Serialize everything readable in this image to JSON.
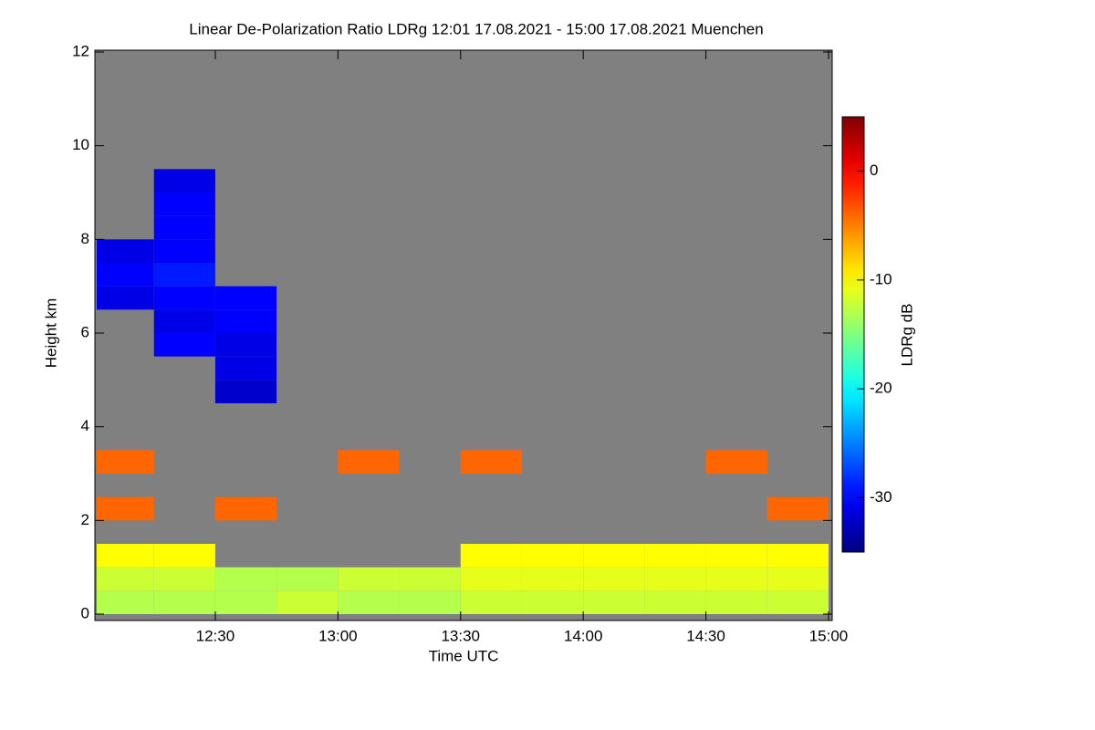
{
  "chart_data": {
    "type": "heatmap",
    "title": "Linear De-Polarization Ratio LDRg   12:01 17.08.2021 - 15:00 17.08.2021 Muenchen",
    "xlabel": "Time UTC",
    "ylabel": "Height km",
    "colorbar_label": "LDRg dB",
    "missing_color": "#808080",
    "colormap": "jet",
    "xlim": [
      12.0167,
      15.0
    ],
    "xticks": [
      {
        "value": 12.5,
        "label": "12:30"
      },
      {
        "value": 13.0,
        "label": "13:00"
      },
      {
        "value": 13.5,
        "label": "13:30"
      },
      {
        "value": 14.0,
        "label": "14:00"
      },
      {
        "value": 14.5,
        "label": "14:30"
      },
      {
        "value": 15.0,
        "label": "15:00"
      }
    ],
    "ylim": [
      0,
      12
    ],
    "yticks": [
      0,
      2,
      4,
      6,
      8,
      10,
      12
    ],
    "zlim": [
      -35,
      5
    ],
    "zticks": [
      0,
      -10,
      -20,
      -30
    ],
    "x_bins": [
      12.0167,
      12.25,
      12.5,
      12.75,
      13.0,
      13.25,
      13.5,
      13.75,
      14.0,
      14.25,
      14.5,
      14.75,
      15.0
    ],
    "y_bins": [
      0,
      0.5,
      1,
      1.5,
      2,
      2.5,
      3,
      3.5,
      4,
      4.5,
      5,
      5.5,
      6,
      6.5,
      7,
      7.5,
      8,
      8.5,
      9,
      9.5,
      10,
      10.5,
      11,
      11.5,
      12
    ],
    "z": [
      [
        -13,
        -13,
        -13,
        -12,
        -13,
        -13,
        -12,
        -12,
        -12,
        -12,
        -12,
        -12
      ],
      [
        -12,
        -12,
        -13,
        -13,
        -12,
        -12,
        -11,
        -11,
        -11,
        -11,
        -11,
        -11
      ],
      [
        -10,
        -10,
        null,
        null,
        null,
        null,
        -10,
        -10,
        -10,
        -10,
        -10,
        -10
      ],
      [
        null,
        null,
        null,
        null,
        null,
        null,
        null,
        null,
        null,
        null,
        null,
        null
      ],
      [
        -4,
        null,
        -4,
        null,
        null,
        null,
        null,
        null,
        null,
        null,
        null,
        -4
      ],
      [
        null,
        null,
        null,
        null,
        null,
        null,
        null,
        null,
        null,
        null,
        null,
        null
      ],
      [
        -4,
        null,
        null,
        null,
        -4,
        null,
        -4,
        null,
        null,
        null,
        -4,
        null
      ],
      [
        null,
        null,
        null,
        null,
        null,
        null,
        null,
        null,
        null,
        null,
        null,
        null
      ],
      [
        null,
        null,
        null,
        null,
        null,
        null,
        null,
        null,
        null,
        null,
        null,
        null
      ],
      [
        null,
        null,
        -32,
        null,
        null,
        null,
        null,
        null,
        null,
        null,
        null,
        null
      ],
      [
        null,
        null,
        -31,
        null,
        null,
        null,
        null,
        null,
        null,
        null,
        null,
        null
      ],
      [
        null,
        -30,
        -31,
        null,
        null,
        null,
        null,
        null,
        null,
        null,
        null,
        null
      ],
      [
        null,
        -31,
        -30,
        null,
        null,
        null,
        null,
        null,
        null,
        null,
        null,
        null
      ],
      [
        -31,
        -30,
        -30,
        null,
        null,
        null,
        null,
        null,
        null,
        null,
        null,
        null
      ],
      [
        -30,
        -29,
        null,
        null,
        null,
        null,
        null,
        null,
        null,
        null,
        null,
        null
      ],
      [
        -31,
        -30,
        null,
        null,
        null,
        null,
        null,
        null,
        null,
        null,
        null,
        null
      ],
      [
        null,
        -30,
        null,
        null,
        null,
        null,
        null,
        null,
        null,
        null,
        null,
        null
      ],
      [
        null,
        -30,
        null,
        null,
        null,
        null,
        null,
        null,
        null,
        null,
        null,
        null
      ],
      [
        null,
        -31,
        null,
        null,
        null,
        null,
        null,
        null,
        null,
        null,
        null,
        null
      ],
      [
        null,
        null,
        null,
        null,
        null,
        null,
        null,
        null,
        null,
        null,
        null,
        null
      ],
      [
        null,
        null,
        null,
        null,
        null,
        null,
        null,
        null,
        null,
        null,
        null,
        null
      ],
      [
        null,
        null,
        null,
        null,
        null,
        null,
        null,
        null,
        null,
        null,
        null,
        null
      ],
      [
        null,
        null,
        null,
        null,
        null,
        null,
        null,
        null,
        null,
        null,
        null,
        null
      ],
      [
        null,
        null,
        null,
        null,
        null,
        null,
        null,
        null,
        null,
        null,
        null,
        null
      ]
    ]
  }
}
